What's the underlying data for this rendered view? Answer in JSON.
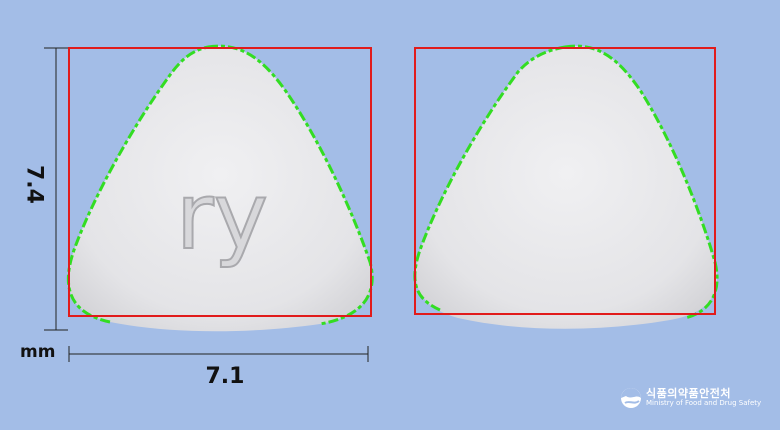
{
  "dimensions": {
    "height_mm": "7.4",
    "width_mm": "7.1",
    "unit": "mm"
  },
  "tablet": {
    "imprint_front": "ry",
    "imprint_back": ""
  },
  "logo": {
    "name_ko": "식품의약품안전처",
    "name_en": "Ministry of Food and Drug Safety"
  },
  "colors": {
    "background": "#a3bde7",
    "bounding_box": "#e11b1b",
    "outline": "#33dd22",
    "tablet": "#e9e9eb"
  }
}
